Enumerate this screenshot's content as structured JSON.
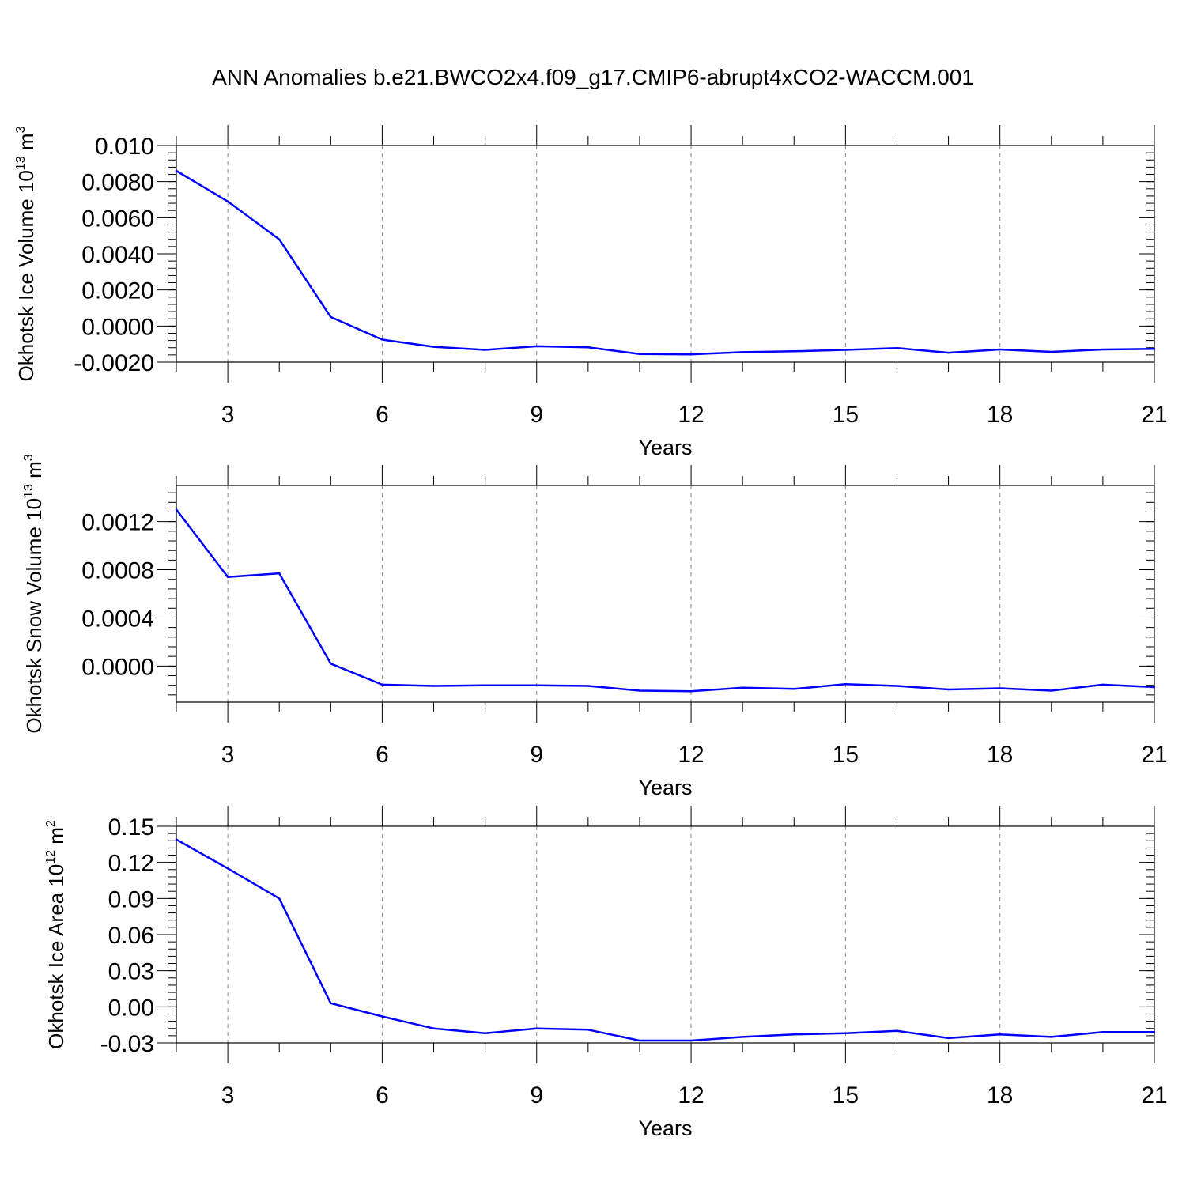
{
  "title": "ANN Anomalies b.e21.BWCO2x4.f09_g17.CMIP6-abrupt4xCO2-WACCM.001",
  "line_color": "#0000ff",
  "chart_data": [
    {
      "type": "line",
      "title": "ANN Anomalies b.e21.BWCO2x4.f09_g17.CMIP6-abrupt4xCO2-WACCM.001",
      "ylabel_main": "Okhotsk Ice Volume 10",
      "ylabel_exp": "13",
      "ylabel_unit": " m",
      "ylabel_unit_exp": "3",
      "xlabel": "Years",
      "xlim": [
        2,
        21
      ],
      "ylim": [
        -0.002,
        0.01
      ],
      "xticks": [
        3,
        6,
        9,
        12,
        15,
        18,
        21
      ],
      "xtick_labels": [
        "3",
        "6",
        "9",
        "12",
        "15",
        "18",
        "21"
      ],
      "yticks": [
        -0.002,
        0,
        0.002,
        0.004,
        0.006,
        0.008,
        0.01
      ],
      "ytick_labels": [
        "-0.0020",
        "0.0000",
        "0.0020",
        "0.0040",
        "0.0060",
        "0.0080",
        "0.010"
      ],
      "x": [
        2,
        3,
        4,
        5,
        6,
        7,
        8,
        9,
        10,
        11,
        12,
        13,
        14,
        15,
        16,
        17,
        18,
        19,
        20,
        21
      ],
      "y": [
        0.0086,
        0.0069,
        0.0048,
        0.0005,
        -0.00075,
        -0.00115,
        -0.00132,
        -0.00112,
        -0.00118,
        -0.00155,
        -0.00157,
        -0.00145,
        -0.0014,
        -0.00132,
        -0.00122,
        -0.00148,
        -0.0013,
        -0.00143,
        -0.0013,
        -0.00127
      ]
    },
    {
      "type": "line",
      "ylabel_main": "Okhotsk Snow Volume 10",
      "ylabel_exp": "13",
      "ylabel_unit": " m",
      "ylabel_unit_exp": "3",
      "xlabel": "Years",
      "xlim": [
        2,
        21
      ],
      "ylim": [
        -0.0003,
        0.0015
      ],
      "xticks": [
        3,
        6,
        9,
        12,
        15,
        18,
        21
      ],
      "xtick_labels": [
        "3",
        "6",
        "9",
        "12",
        "15",
        "18",
        "21"
      ],
      "yticks": [
        0,
        0.0004,
        0.0008,
        0.0012
      ],
      "ytick_labels": [
        "0.0000",
        "0.0004",
        "0.0008",
        "0.0012"
      ],
      "x": [
        2,
        3,
        4,
        5,
        6,
        7,
        8,
        9,
        10,
        11,
        12,
        13,
        14,
        15,
        16,
        17,
        18,
        19,
        20,
        21
      ],
      "y": [
        0.0013,
        0.00074,
        0.00077,
        2e-05,
        -0.000155,
        -0.000165,
        -0.00016,
        -0.00016,
        -0.000165,
        -0.000205,
        -0.00021,
        -0.00018,
        -0.00019,
        -0.00015,
        -0.000165,
        -0.000195,
        -0.000185,
        -0.000205,
        -0.000155,
        -0.000175
      ]
    },
    {
      "type": "line",
      "ylabel_main": "Okhotsk Ice Area 10",
      "ylabel_exp": "12",
      "ylabel_unit": " m",
      "ylabel_unit_exp": "2",
      "xlabel": "Years",
      "xlim": [
        2,
        21
      ],
      "ylim": [
        -0.03,
        0.15
      ],
      "xticks": [
        3,
        6,
        9,
        12,
        15,
        18,
        21
      ],
      "xtick_labels": [
        "3",
        "6",
        "9",
        "12",
        "15",
        "18",
        "21"
      ],
      "yticks": [
        -0.03,
        0,
        0.03,
        0.06,
        0.09,
        0.12,
        0.15
      ],
      "ytick_labels": [
        "-0.03",
        "0.00",
        "0.03",
        "0.06",
        "0.09",
        "0.12",
        "0.15"
      ],
      "x": [
        2,
        3,
        4,
        5,
        6,
        7,
        8,
        9,
        10,
        11,
        12,
        13,
        14,
        15,
        16,
        17,
        18,
        19,
        20,
        21
      ],
      "y": [
        0.139,
        0.115,
        0.09,
        0.003,
        -0.008,
        -0.018,
        -0.022,
        -0.018,
        -0.019,
        -0.028,
        -0.028,
        -0.025,
        -0.023,
        -0.022,
        -0.02,
        -0.026,
        -0.023,
        -0.025,
        -0.021,
        -0.021
      ]
    }
  ]
}
